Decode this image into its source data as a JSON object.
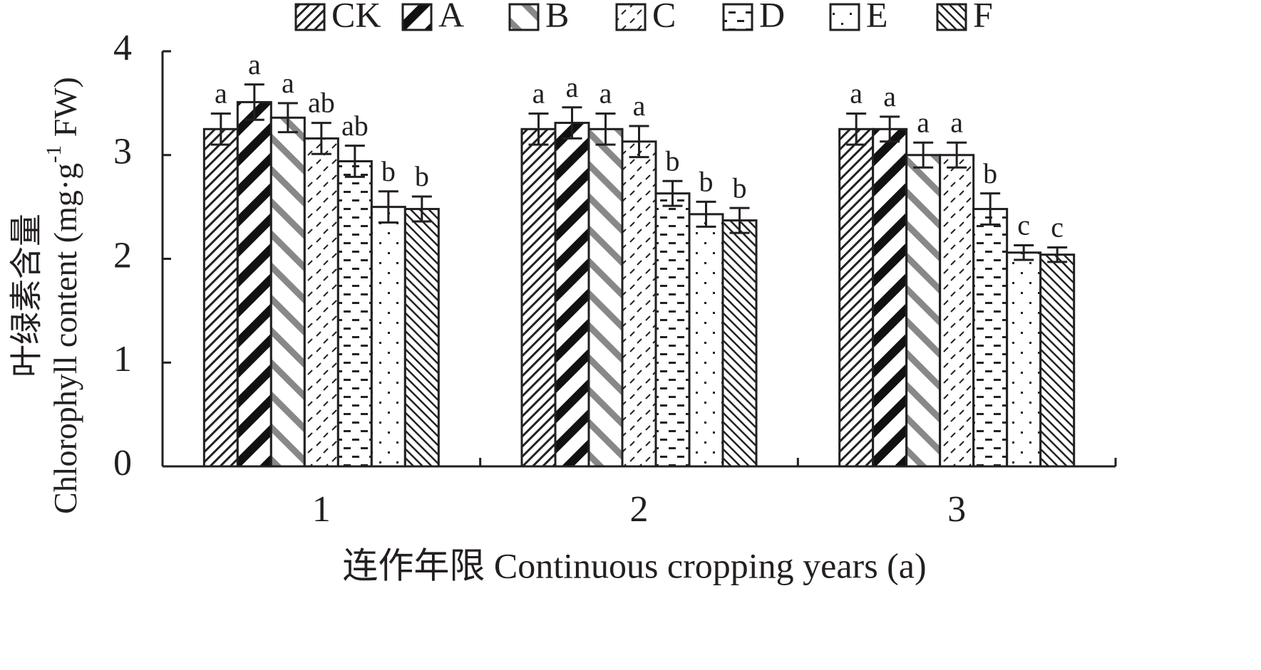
{
  "chart_data": {
    "type": "bar",
    "ylabel": {
      "line1": "叶绿素含量",
      "line2_before": "Chlorophyll content (mg·g",
      "line2_sup": "-1",
      "line2_after": " FW)"
    },
    "xlabel": "连作年限 Continuous cropping years (a)",
    "categories": [
      "1",
      "2",
      "3"
    ],
    "ylim": [
      0,
      4
    ],
    "yticks": [
      0,
      1,
      2,
      3,
      4
    ],
    "series": [
      {
        "name": "CK",
        "color": "#222222",
        "values": [
          3.25,
          3.25,
          3.25
        ],
        "errors": [
          0.15,
          0.15,
          0.15
        ],
        "labels": [
          "a",
          "a",
          "a"
        ]
      },
      {
        "name": "A",
        "color": "#111111",
        "values": [
          3.51,
          3.31,
          3.25
        ],
        "errors": [
          0.17,
          0.15,
          0.12
        ],
        "labels": [
          "a",
          "a",
          "a"
        ]
      },
      {
        "name": "B",
        "color": "#888888",
        "values": [
          3.36,
          3.25,
          3.0
        ],
        "errors": [
          0.14,
          0.15,
          0.12
        ],
        "labels": [
          "a",
          "a",
          "a"
        ]
      },
      {
        "name": "C",
        "color": "#222222",
        "values": [
          3.16,
          3.13,
          3.0
        ],
        "errors": [
          0.15,
          0.15,
          0.12
        ],
        "labels": [
          "ab",
          "a",
          "a"
        ]
      },
      {
        "name": "D",
        "color": "#222222",
        "values": [
          2.94,
          2.63,
          2.48
        ],
        "errors": [
          0.15,
          0.12,
          0.15
        ],
        "labels": [
          "ab",
          "b",
          "b"
        ]
      },
      {
        "name": "E",
        "color": "#222222",
        "values": [
          2.5,
          2.43,
          2.06
        ],
        "errors": [
          0.15,
          0.12,
          0.07
        ],
        "labels": [
          "b",
          "b",
          "c"
        ]
      },
      {
        "name": "F",
        "color": "#222222",
        "values": [
          2.48,
          2.37,
          2.04
        ],
        "errors": [
          0.12,
          0.12,
          0.07
        ],
        "labels": [
          "b",
          "b",
          "c"
        ]
      }
    ]
  }
}
